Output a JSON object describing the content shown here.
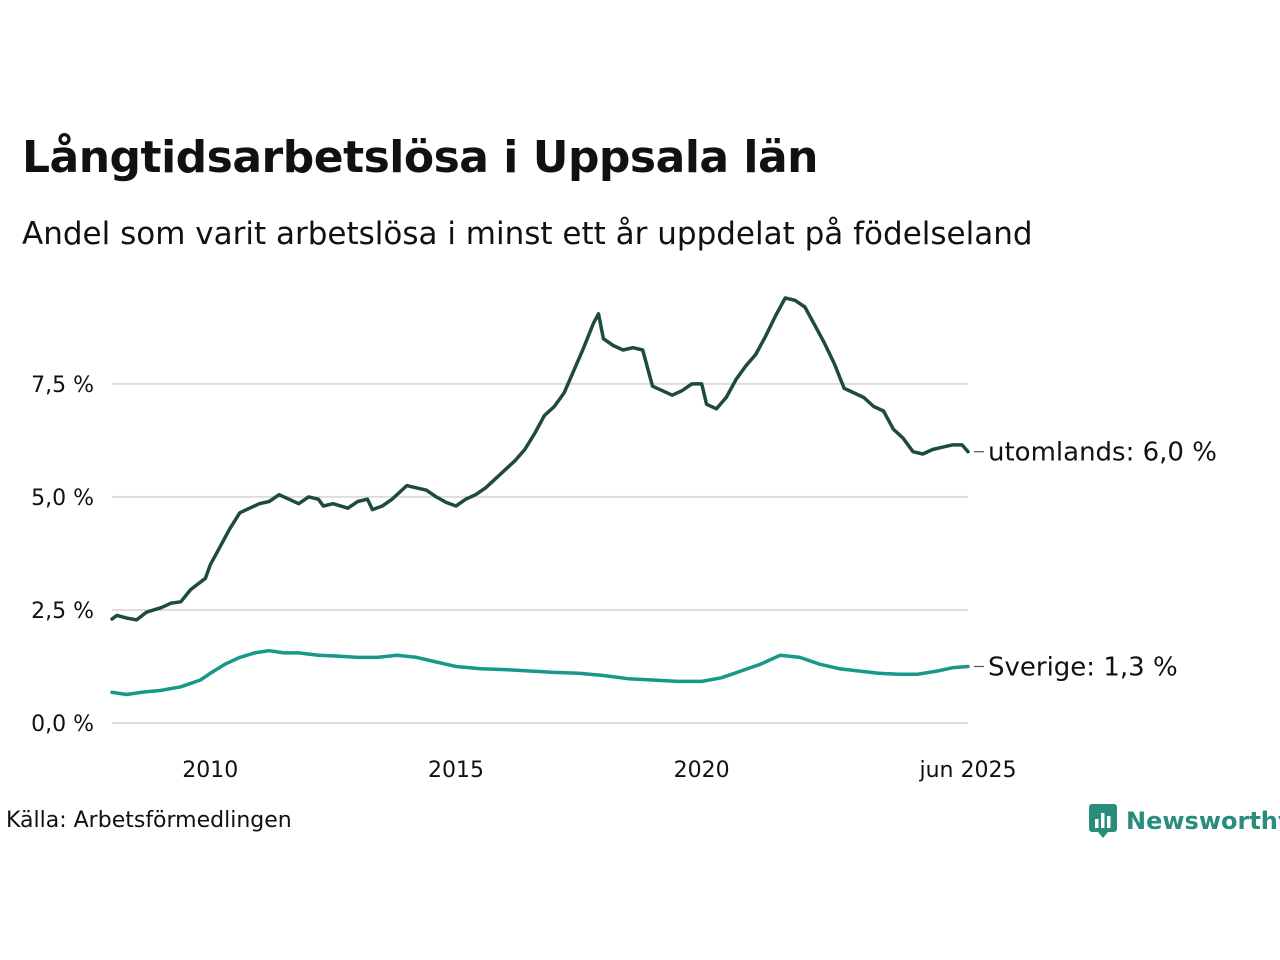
{
  "title": "Långtidsarbetslösa i Uppsala län",
  "subtitle": "Andel som varit arbetslösa i minst ett år uppdelat på födelseland",
  "source": "Källa: Arbetsförmedlingen",
  "brand": {
    "name": "Newsworthy",
    "icon": "newsworthy-logo-icon",
    "color": "#2a8c7c"
  },
  "colors": {
    "utomlands": "#1e4a42",
    "sverige": "#17988a",
    "grid": "#dddddd"
  },
  "chart_data": {
    "type": "line",
    "title": "Långtidsarbetslösa i Uppsala län",
    "xlabel": "",
    "ylabel": "",
    "xlim": [
      2008.0,
      2025.42
    ],
    "ylim": [
      0,
      9.4
    ],
    "grid": true,
    "legend": "direct labels at line ends",
    "x_ticks": [
      {
        "value": 2010,
        "label": "2010"
      },
      {
        "value": 2015,
        "label": "2015"
      },
      {
        "value": 2020,
        "label": "2020"
      },
      {
        "value": 2025.42,
        "label": "jun 2025"
      }
    ],
    "y_ticks": [
      {
        "value": 0,
        "label": "0,0 %"
      },
      {
        "value": 2.5,
        "label": "2,5 %"
      },
      {
        "value": 5,
        "label": "5,0 %"
      },
      {
        "value": 7.5,
        "label": "7,5 %"
      }
    ],
    "series": [
      {
        "name": "utomlands",
        "end_label": "utomlands: 6,0 %",
        "points": [
          [
            2008.0,
            2.3
          ],
          [
            2008.1,
            2.38
          ],
          [
            2008.3,
            2.32
          ],
          [
            2008.5,
            2.28
          ],
          [
            2008.7,
            2.45
          ],
          [
            2009.0,
            2.55
          ],
          [
            2009.2,
            2.65
          ],
          [
            2009.4,
            2.68
          ],
          [
            2009.6,
            2.95
          ],
          [
            2009.9,
            3.2
          ],
          [
            2010.0,
            3.5
          ],
          [
            2010.2,
            3.9
          ],
          [
            2010.4,
            4.3
          ],
          [
            2010.6,
            4.65
          ],
          [
            2010.8,
            4.75
          ],
          [
            2011.0,
            4.85
          ],
          [
            2011.2,
            4.9
          ],
          [
            2011.4,
            5.05
          ],
          [
            2011.6,
            4.95
          ],
          [
            2011.8,
            4.85
          ],
          [
            2012.0,
            5.0
          ],
          [
            2012.2,
            4.95
          ],
          [
            2012.3,
            4.8
          ],
          [
            2012.5,
            4.85
          ],
          [
            2012.8,
            4.75
          ],
          [
            2013.0,
            4.9
          ],
          [
            2013.2,
            4.95
          ],
          [
            2013.3,
            4.72
          ],
          [
            2013.5,
            4.8
          ],
          [
            2013.7,
            4.95
          ],
          [
            2014.0,
            5.25
          ],
          [
            2014.2,
            5.2
          ],
          [
            2014.4,
            5.15
          ],
          [
            2014.6,
            5.0
          ],
          [
            2014.8,
            4.88
          ],
          [
            2015.0,
            4.8
          ],
          [
            2015.2,
            4.95
          ],
          [
            2015.4,
            5.05
          ],
          [
            2015.6,
            5.2
          ],
          [
            2015.8,
            5.4
          ],
          [
            2016.0,
            5.6
          ],
          [
            2016.2,
            5.8
          ],
          [
            2016.4,
            6.05
          ],
          [
            2016.6,
            6.4
          ],
          [
            2016.8,
            6.8
          ],
          [
            2017.0,
            7.0
          ],
          [
            2017.2,
            7.3
          ],
          [
            2017.4,
            7.8
          ],
          [
            2017.6,
            8.3
          ],
          [
            2017.8,
            8.85
          ],
          [
            2017.9,
            9.05
          ],
          [
            2018.0,
            8.5
          ],
          [
            2018.2,
            8.35
          ],
          [
            2018.4,
            8.25
          ],
          [
            2018.6,
            8.3
          ],
          [
            2018.8,
            8.25
          ],
          [
            2019.0,
            7.45
          ],
          [
            2019.2,
            7.35
          ],
          [
            2019.4,
            7.25
          ],
          [
            2019.6,
            7.35
          ],
          [
            2019.8,
            7.5
          ],
          [
            2020.0,
            7.5
          ],
          [
            2020.1,
            7.05
          ],
          [
            2020.3,
            6.95
          ],
          [
            2020.5,
            7.2
          ],
          [
            2020.7,
            7.6
          ],
          [
            2020.9,
            7.9
          ],
          [
            2021.1,
            8.15
          ],
          [
            2021.3,
            8.55
          ],
          [
            2021.5,
            9.0
          ],
          [
            2021.7,
            9.4
          ],
          [
            2021.9,
            9.35
          ],
          [
            2022.1,
            9.2
          ],
          [
            2022.3,
            8.8
          ],
          [
            2022.5,
            8.4
          ],
          [
            2022.7,
            7.95
          ],
          [
            2022.9,
            7.4
          ],
          [
            2023.1,
            7.3
          ],
          [
            2023.3,
            7.2
          ],
          [
            2023.5,
            7.0
          ],
          [
            2023.7,
            6.9
          ],
          [
            2023.9,
            6.5
          ],
          [
            2024.1,
            6.3
          ],
          [
            2024.3,
            6.0
          ],
          [
            2024.5,
            5.95
          ],
          [
            2024.7,
            6.05
          ],
          [
            2024.9,
            6.1
          ],
          [
            2025.1,
            6.15
          ],
          [
            2025.3,
            6.15
          ],
          [
            2025.42,
            6.0
          ]
        ]
      },
      {
        "name": "Sverige",
        "end_label": "Sverige: 1,3 %",
        "points": [
          [
            2008.0,
            0.68
          ],
          [
            2008.3,
            0.63
          ],
          [
            2008.6,
            0.68
          ],
          [
            2009.0,
            0.72
          ],
          [
            2009.4,
            0.8
          ],
          [
            2009.8,
            0.95
          ],
          [
            2010.0,
            1.1
          ],
          [
            2010.3,
            1.3
          ],
          [
            2010.6,
            1.45
          ],
          [
            2010.9,
            1.55
          ],
          [
            2011.2,
            1.6
          ],
          [
            2011.5,
            1.55
          ],
          [
            2011.8,
            1.55
          ],
          [
            2012.2,
            1.5
          ],
          [
            2012.6,
            1.48
          ],
          [
            2013.0,
            1.45
          ],
          [
            2013.4,
            1.45
          ],
          [
            2013.8,
            1.5
          ],
          [
            2014.2,
            1.45
          ],
          [
            2014.6,
            1.35
          ],
          [
            2015.0,
            1.25
          ],
          [
            2015.5,
            1.2
          ],
          [
            2016.0,
            1.18
          ],
          [
            2016.5,
            1.15
          ],
          [
            2017.0,
            1.12
          ],
          [
            2017.5,
            1.1
          ],
          [
            2018.0,
            1.05
          ],
          [
            2018.5,
            0.98
          ],
          [
            2019.0,
            0.95
          ],
          [
            2019.5,
            0.92
          ],
          [
            2020.0,
            0.92
          ],
          [
            2020.4,
            1.0
          ],
          [
            2020.8,
            1.15
          ],
          [
            2021.2,
            1.3
          ],
          [
            2021.6,
            1.5
          ],
          [
            2022.0,
            1.45
          ],
          [
            2022.4,
            1.3
          ],
          [
            2022.8,
            1.2
          ],
          [
            2023.2,
            1.15
          ],
          [
            2023.6,
            1.1
          ],
          [
            2024.0,
            1.08
          ],
          [
            2024.4,
            1.08
          ],
          [
            2024.8,
            1.15
          ],
          [
            2025.1,
            1.22
          ],
          [
            2025.42,
            1.25
          ]
        ]
      }
    ]
  }
}
